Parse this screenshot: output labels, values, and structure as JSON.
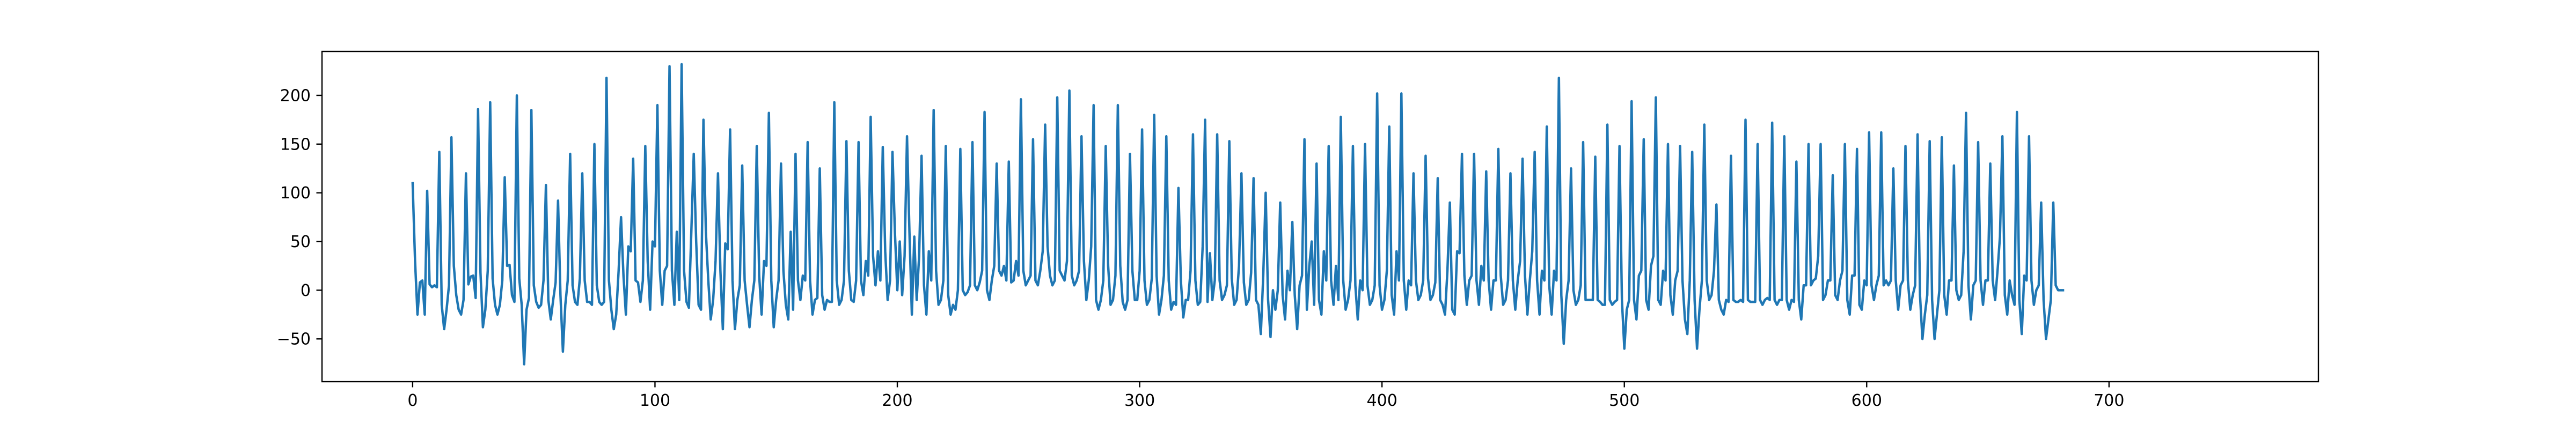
{
  "chart_data": {
    "type": "line",
    "title": "",
    "xlabel": "",
    "ylabel": "",
    "xlim": [
      -37.4,
      786.4
    ],
    "ylim": [
      -93.9,
      245.1
    ],
    "x_ticks": [
      0,
      100,
      200,
      300,
      400,
      500,
      600,
      700
    ],
    "y_ticks": [
      -50,
      0,
      50,
      100,
      150,
      200
    ],
    "grid": false,
    "legend": "none",
    "series": [
      {
        "color": "#1f77b4",
        "x_start": 0,
        "x_step": 1,
        "values": [
          110,
          30,
          -25,
          8,
          10,
          -25,
          102,
          6,
          3,
          5,
          3,
          142,
          -15,
          -40,
          -20,
          5,
          157,
          25,
          -5,
          -20,
          -25,
          -10,
          120,
          6,
          14,
          15,
          -8,
          186,
          18,
          -38,
          -20,
          20,
          193,
          12,
          -15,
          -25,
          -15,
          10,
          116,
          25,
          26,
          -5,
          -12,
          200,
          12,
          -15,
          -76,
          -20,
          -8,
          185,
          5,
          -12,
          -18,
          -15,
          10,
          108,
          -10,
          -30,
          -10,
          8,
          92,
          -5,
          -63,
          -15,
          10,
          140,
          5,
          -12,
          -15,
          12,
          120,
          10,
          -12,
          -12,
          -15,
          150,
          5,
          -12,
          -15,
          -12,
          218,
          10,
          -20,
          -40,
          -25,
          20,
          75,
          15,
          -25,
          45,
          40,
          135,
          10,
          8,
          -12,
          10,
          148,
          30,
          -20,
          50,
          45,
          190,
          20,
          -15,
          20,
          25,
          230,
          20,
          -15,
          60,
          -10,
          232,
          20,
          -12,
          -18,
          60,
          140,
          50,
          -15,
          -20,
          175,
          60,
          10,
          -30,
          -10,
          30,
          120,
          20,
          -40,
          48,
          42,
          165,
          10,
          -40,
          -10,
          5,
          128,
          10,
          -15,
          -38,
          -10,
          10,
          148,
          15,
          -25,
          30,
          25,
          182,
          10,
          -38,
          -10,
          10,
          130,
          20,
          -15,
          -30,
          60,
          -20,
          140,
          10,
          -10,
          15,
          10,
          152,
          10,
          -25,
          -10,
          -8,
          125,
          -5,
          -20,
          -10,
          -12,
          -12,
          193,
          10,
          -15,
          -10,
          10,
          153,
          20,
          -10,
          -12,
          10,
          152,
          10,
          -5,
          30,
          15,
          178,
          35,
          5,
          40,
          10,
          147,
          40,
          -10,
          10,
          142,
          60,
          0,
          50,
          -5,
          35,
          158,
          60,
          -25,
          55,
          -10,
          35,
          138,
          5,
          -25,
          40,
          10,
          185,
          20,
          -15,
          -10,
          10,
          148,
          -5,
          -25,
          -15,
          -20,
          0,
          145,
          0,
          -5,
          -2,
          5,
          152,
          5,
          0,
          8,
          20,
          183,
          0,
          -10,
          10,
          25,
          130,
          20,
          15,
          25,
          10,
          132,
          8,
          10,
          30,
          15,
          196,
          20,
          5,
          10,
          15,
          155,
          10,
          5,
          20,
          40,
          170,
          45,
          15,
          5,
          10,
          198,
          20,
          15,
          10,
          30,
          205,
          15,
          5,
          10,
          20,
          158,
          30,
          -10,
          10,
          45,
          190,
          -10,
          -20,
          -10,
          10,
          148,
          25,
          -15,
          -10,
          15,
          190,
          25,
          -12,
          -20,
          -10,
          140,
          20,
          -10,
          -10,
          20,
          165,
          10,
          -15,
          -10,
          12,
          180,
          15,
          -25,
          -10,
          15,
          158,
          10,
          -20,
          -12,
          -15,
          105,
          10,
          -28,
          -10,
          -10,
          20,
          160,
          10,
          -15,
          -12,
          45,
          175,
          -12,
          38,
          -10,
          10,
          160,
          10,
          -10,
          -5,
          5,
          153,
          12,
          -15,
          -10,
          25,
          120,
          8,
          -15,
          -10,
          18,
          115,
          -10,
          -15,
          -45,
          15,
          100,
          -10,
          -48,
          0,
          -20,
          0,
          90,
          -5,
          -30,
          20,
          0,
          70,
          -5,
          -40,
          5,
          15,
          155,
          -20,
          25,
          50,
          -15,
          130,
          -10,
          -25,
          40,
          10,
          148,
          10,
          -15,
          25,
          -10,
          178,
          10,
          -20,
          -10,
          10,
          148,
          5,
          -30,
          10,
          0,
          150,
          5,
          -15,
          -10,
          5,
          202,
          5,
          -20,
          -10,
          20,
          168,
          -5,
          -25,
          40,
          10,
          202,
          10,
          -20,
          10,
          5,
          120,
          10,
          -10,
          -5,
          10,
          138,
          12,
          -10,
          -5,
          8,
          115,
          -10,
          -15,
          -25,
          20,
          90,
          -20,
          -25,
          40,
          38,
          140,
          15,
          -15,
          10,
          15,
          140,
          10,
          -15,
          25,
          10,
          122,
          10,
          -20,
          10,
          10,
          145,
          15,
          -15,
          -10,
          10,
          120,
          10,
          -20,
          10,
          30,
          135,
          15,
          -25,
          10,
          40,
          142,
          10,
          -25,
          20,
          10,
          168,
          5,
          -25,
          20,
          10,
          218,
          -5,
          -55,
          -10,
          10,
          125,
          0,
          -15,
          -10,
          5,
          152,
          -10,
          -10,
          -10,
          -10,
          137,
          -10,
          -12,
          -15,
          -15,
          170,
          -10,
          -15,
          -12,
          -10,
          148,
          -10,
          -60,
          -20,
          -10,
          194,
          -10,
          -30,
          15,
          20,
          155,
          -10,
          -20,
          25,
          35,
          198,
          -10,
          -15,
          20,
          10,
          150,
          -5,
          -25,
          10,
          20,
          148,
          10,
          -30,
          -45,
          10,
          142,
          -10,
          -60,
          -20,
          10,
          170,
          10,
          -10,
          -5,
          20,
          88,
          -10,
          -20,
          -25,
          -10,
          -12,
          138,
          -10,
          -12,
          -12,
          -10,
          -12,
          175,
          -10,
          -12,
          -12,
          -12,
          150,
          -10,
          -15,
          -10,
          -8,
          -10,
          172,
          -10,
          -15,
          -10,
          -10,
          158,
          -10,
          -20,
          -10,
          -12,
          132,
          -10,
          -30,
          5,
          5,
          150,
          5,
          10,
          12,
          35,
          150,
          -10,
          -5,
          10,
          10,
          118,
          -5,
          -10,
          10,
          20,
          150,
          -10,
          -25,
          15,
          15,
          145,
          -15,
          -20,
          10,
          5,
          162,
          5,
          -10,
          5,
          15,
          162,
          5,
          10,
          5,
          10,
          125,
          10,
          -20,
          5,
          10,
          148,
          10,
          -20,
          -5,
          5,
          160,
          -5,
          -50,
          -25,
          -5,
          153,
          -10,
          -50,
          -25,
          0,
          157,
          -5,
          -25,
          10,
          10,
          128,
          0,
          -10,
          -5,
          40,
          182,
          5,
          -30,
          5,
          10,
          152,
          10,
          -15,
          10,
          10,
          130,
          10,
          -10,
          20,
          55,
          158,
          -5,
          -25,
          10,
          -5,
          -15,
          183,
          -10,
          -45,
          15,
          10,
          158,
          10,
          -15,
          0,
          5,
          90,
          -10,
          -50,
          -30,
          -10,
          90,
          5,
          0,
          0,
          0
        ]
      }
    ]
  }
}
